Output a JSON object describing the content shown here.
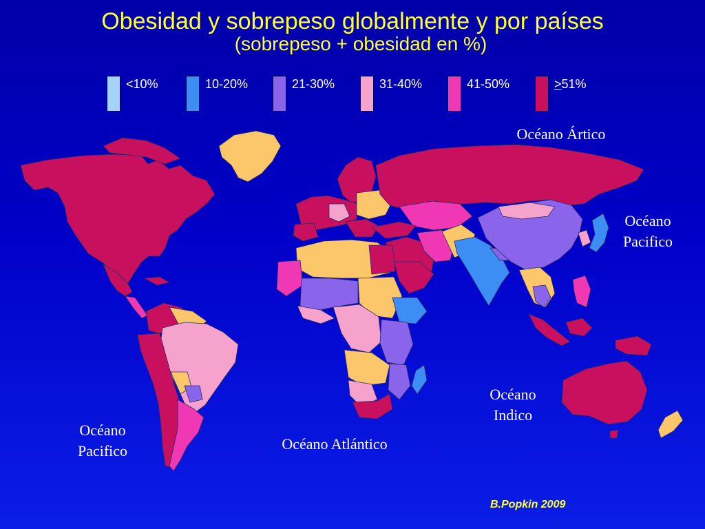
{
  "title": "Obesidad y sobrepeso globalmente y por países",
  "subtitle": "(sobrepeso + obesidad en %)",
  "legend": [
    {
      "label": "<10%",
      "color": "#a6d2f7"
    },
    {
      "label": "10-20%",
      "color": "#3c8ef5"
    },
    {
      "label": "21-30%",
      "color": "#8a64ea"
    },
    {
      "label": "31-40%",
      "color": "#f5a3cc"
    },
    {
      "label": "41-50%",
      "color": "#f037b4"
    },
    {
      "label_prefix": ">",
      "label": "51%",
      "color": "#c8105e"
    }
  ],
  "no_data_color": "#fcc76a",
  "oceans": {
    "arctic": "Océano Ártico",
    "pacific_east": "Océano\nPacifico",
    "indian": "Océano\nIndico",
    "atlantic": "Océano Atlántico",
    "pacific_west": "Océano\nPacifico"
  },
  "credit": "B.Popkin 2009"
}
